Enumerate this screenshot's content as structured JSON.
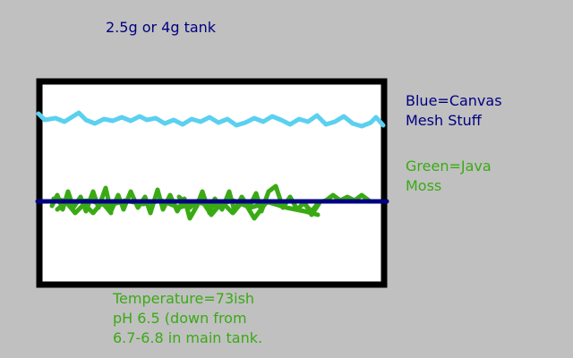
{
  "title": "2.5g or 4g tank",
  "legend": {
    "blue": [
      "Blue=Canvas",
      "Mesh Stuff"
    ],
    "green": [
      "Green=Java",
      "Moss"
    ]
  },
  "notes": [
    "Temperature=73ish",
    "pH 6.5 (down from",
    "6.7-6.8 in main tank."
  ],
  "colors": {
    "background": "#c0c0c0",
    "tank_fill": "#ffffff",
    "tank_outline": "#000000",
    "canvas_mesh": "#5bd0f0",
    "java_moss": "#3aaa14",
    "divider_line": "#000080",
    "blue_text": "#000080",
    "green_text": "#3aaa14"
  }
}
